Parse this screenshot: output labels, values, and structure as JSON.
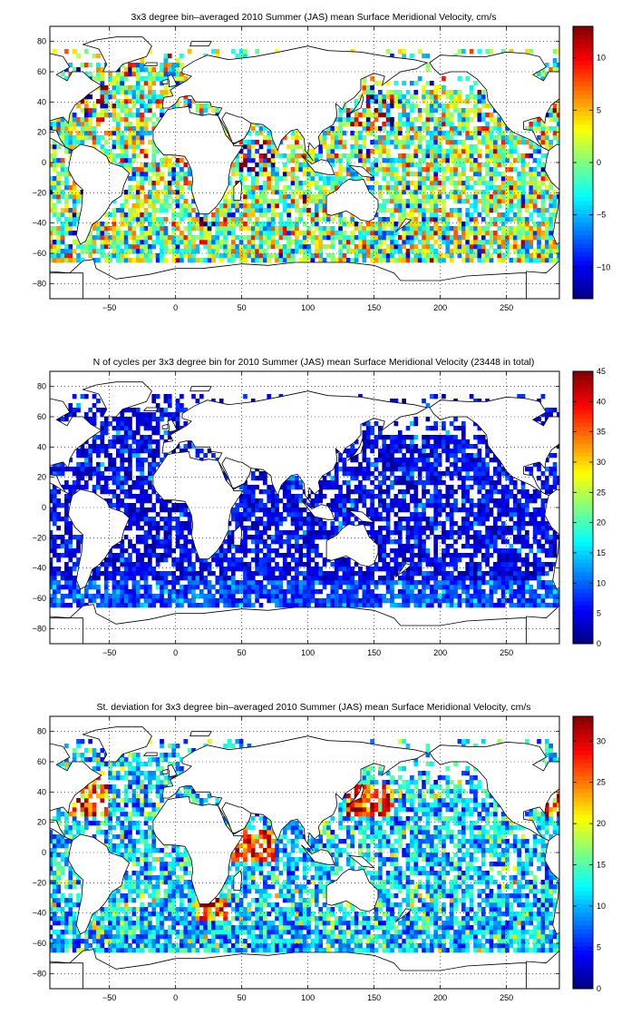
{
  "chart_data": [
    {
      "type": "heatmap",
      "title": "3x3 degree bin–averaged 2010 Summer (JAS) mean Surface Meridional Velocity, cm/s",
      "xlabel": "",
      "ylabel": "",
      "bin_size_deg": 3,
      "xlim": [
        -95,
        290
      ],
      "ylim": [
        -90,
        90
      ],
      "x_ticks": [
        -50,
        0,
        50,
        100,
        150,
        200,
        250
      ],
      "y_ticks": [
        80,
        60,
        40,
        20,
        0,
        -20,
        -40,
        -60,
        -80
      ],
      "grid": true,
      "colorbar": {
        "clim": [
          -13,
          13
        ],
        "ticks": [
          10,
          5,
          0,
          -5,
          -10
        ],
        "colormap": "jet"
      },
      "value_description": "Signed meridional velocity per 3x3 degree ocean bin (cm/s); bins with no data are blank",
      "seed": 11
    },
    {
      "type": "heatmap",
      "title": "N of cycles per 3x3 degree bin for 2010 Summer (JAS) mean Surface Meridional Velocity (23448 in total)",
      "xlabel": "",
      "ylabel": "",
      "bin_size_deg": 3,
      "xlim": [
        -95,
        290
      ],
      "ylim": [
        -90,
        90
      ],
      "x_ticks": [
        -50,
        0,
        50,
        100,
        150,
        200,
        250
      ],
      "y_ticks": [
        80,
        60,
        40,
        20,
        0,
        -20,
        -40,
        -60,
        -80
      ],
      "grid": true,
      "total_cycles": 23448,
      "colorbar": {
        "clim": [
          0,
          45
        ],
        "ticks": [
          45,
          40,
          35,
          30,
          25,
          20,
          15,
          10,
          5,
          0
        ],
        "colormap": "jet"
      },
      "value_description": "Number of float cycles per bin, mostly 1-10 with some up to ~15",
      "seed": 23
    },
    {
      "type": "heatmap",
      "title": "St. deviation for 3x3 degree bin–averaged 2010 Summer (JAS) mean Surface Meridional Velocity, cm/s",
      "xlabel": "",
      "ylabel": "",
      "bin_size_deg": 3,
      "xlim": [
        -95,
        290
      ],
      "ylim": [
        -90,
        90
      ],
      "x_ticks": [
        -50,
        0,
        50,
        100,
        150,
        200,
        250
      ],
      "y_ticks": [
        80,
        60,
        40,
        20,
        0,
        -20,
        -40,
        -60,
        -80
      ],
      "grid": true,
      "colorbar": {
        "clim": [
          0,
          33
        ],
        "ticks": [
          30,
          25,
          20,
          15,
          10,
          5,
          0
        ],
        "colormap": "jet"
      },
      "value_description": "Standard deviation per bin (cm/s), typically 3-20 with high values (>25) in western boundary currents",
      "seed": 37
    }
  ],
  "colors": {
    "background": "#ffffff",
    "land": "#ffffff",
    "coast": "#000000",
    "grid": "#000000"
  }
}
